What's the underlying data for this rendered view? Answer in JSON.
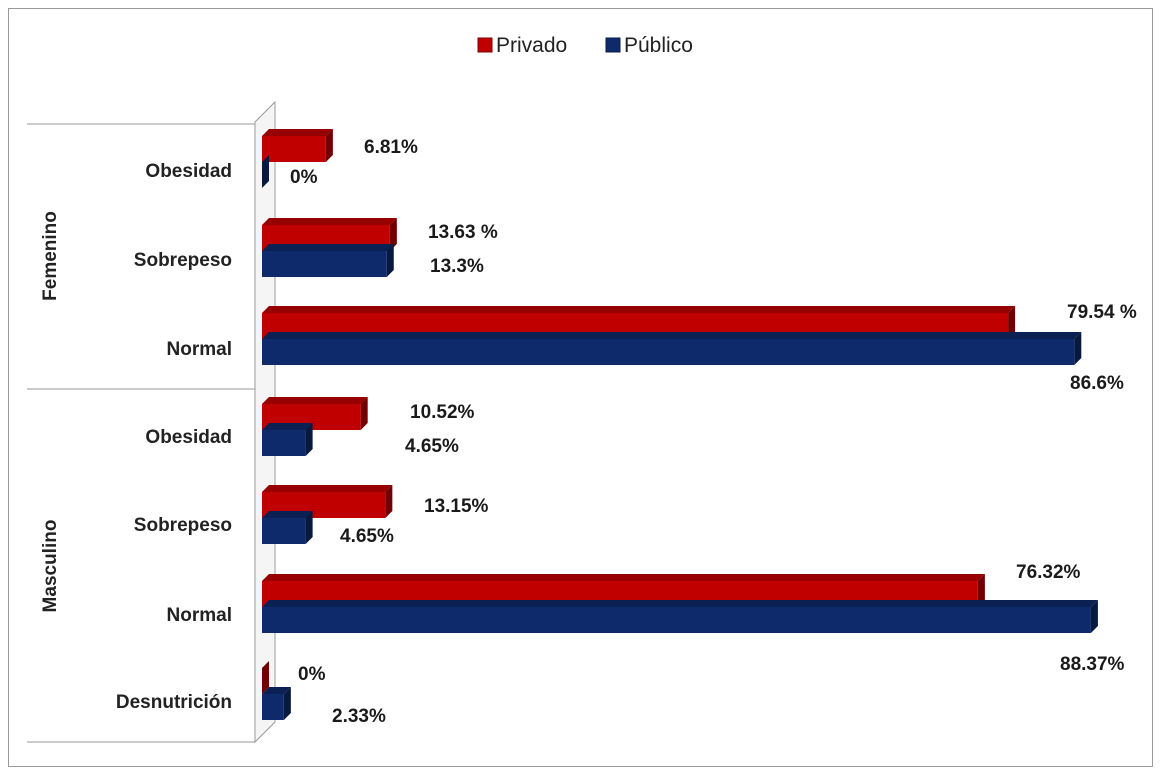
{
  "chart_data": {
    "type": "bar",
    "orientation": "horizontal",
    "legend": {
      "position": "top"
    },
    "colors": {
      "Privado": "#c00000",
      "Público": "#0e2a6b"
    },
    "groups": [
      {
        "name": "Femenino",
        "categories": [
          "Obesidad",
          "Sobrepeso",
          "Normal"
        ],
        "series": [
          {
            "name": "Privado",
            "values": [
              6.81,
              13.63,
              79.54
            ],
            "labels": [
              "6.81%",
              "13.63 %",
              "79.54 %"
            ]
          },
          {
            "name": "Público",
            "values": [
              0,
              13.3,
              86.6
            ],
            "labels": [
              "0%",
              "13.3%",
              "86.6%"
            ]
          }
        ]
      },
      {
        "name": "Masculino",
        "categories": [
          "Obesidad",
          "Sobrepeso",
          "Normal",
          "Desnutrición"
        ],
        "series": [
          {
            "name": "Privado",
            "values": [
              10.52,
              13.15,
              76.32,
              0
            ],
            "labels": [
              "10.52%",
              "13.15%",
              "76.32%",
              "0%"
            ]
          },
          {
            "name": "Público",
            "values": [
              4.65,
              4.65,
              88.37,
              2.33
            ],
            "labels": [
              "4.65%",
              "4.65%",
              "88.37%",
              "2.33%"
            ]
          }
        ]
      }
    ]
  }
}
